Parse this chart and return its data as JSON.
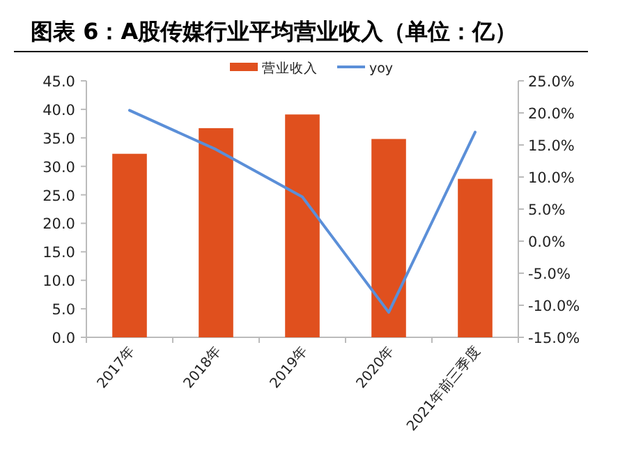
{
  "chart_data": {
    "type": "bar",
    "title": "图表 6：A股传媒行业平均营业收入（单位：亿）",
    "categories": [
      "2017年",
      "2018年",
      "2019年",
      "2020年",
      "2021年前三季度"
    ],
    "series": [
      {
        "name": "营业收入",
        "color": "#e0501e",
        "values": [
          32.2,
          36.7,
          39.1,
          34.8,
          27.8
        ]
      },
      {
        "name": "yoy",
        "type": "line",
        "axis": "y2",
        "color": "#5b8fd8",
        "values": [
          20.4,
          14.3,
          6.9,
          -11.1,
          17.0
        ]
      }
    ],
    "ylim": [
      0,
      45
    ],
    "yticks": [
      {
        "value": 0,
        "label": "0.0"
      },
      {
        "value": 5,
        "label": "5.0"
      },
      {
        "value": 10,
        "label": "10.0"
      },
      {
        "value": 15,
        "label": "15.0"
      },
      {
        "value": 20,
        "label": "20.0"
      },
      {
        "value": 25,
        "label": "25.0"
      },
      {
        "value": 30,
        "label": "30.0"
      },
      {
        "value": 35,
        "label": "35.0"
      },
      {
        "value": 40,
        "label": "40.0"
      },
      {
        "value": 45,
        "label": "45.0"
      }
    ],
    "y2lim": [
      -15,
      25
    ],
    "y2ticks": [
      {
        "value": -15,
        "label": "-15.0%"
      },
      {
        "value": -10,
        "label": "-10.0%"
      },
      {
        "value": -5,
        "label": "-5.0%"
      },
      {
        "value": 0,
        "label": "0.0%"
      },
      {
        "value": 5,
        "label": "5.0%"
      },
      {
        "value": 10,
        "label": "10.0%"
      },
      {
        "value": 15,
        "label": "15.0%"
      },
      {
        "value": 20,
        "label": "20.0%"
      },
      {
        "value": 25,
        "label": "25.0%"
      }
    ],
    "legend": "top"
  }
}
